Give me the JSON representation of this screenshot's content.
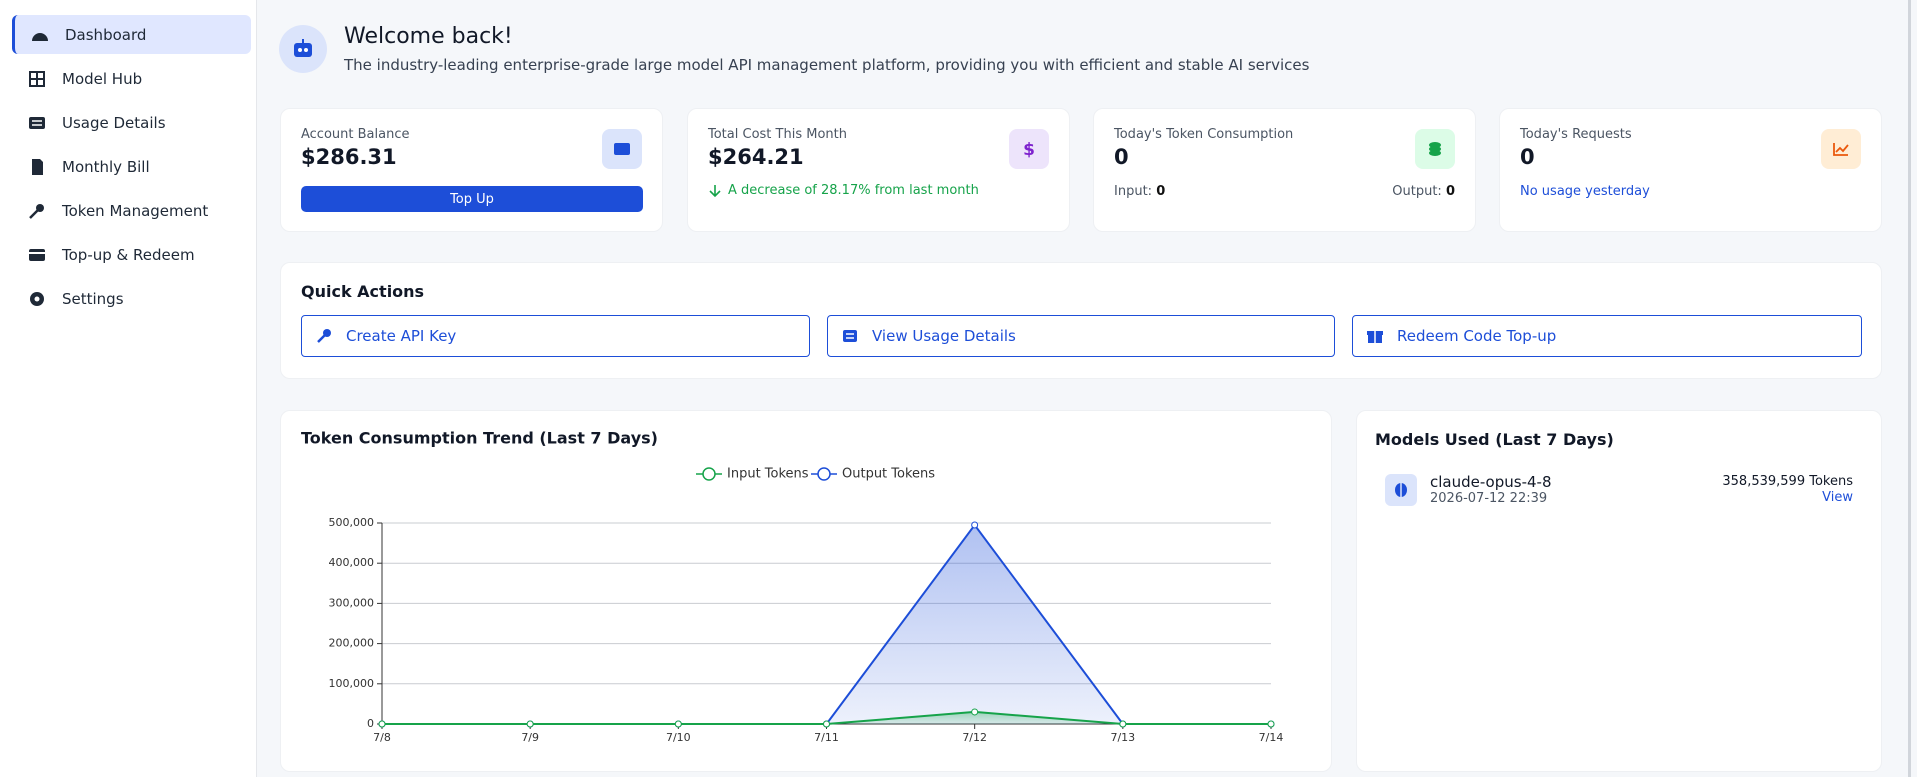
{
  "sidebar": {
    "items": [
      "Dashboard",
      "Model Hub",
      "Usage Details",
      "Monthly Bill",
      "Token Management",
      "Top-up & Redeem",
      "Settings"
    ]
  },
  "header": {
    "title": "Welcome back!",
    "subtitle": "The industry-leading enterprise-grade large model API management platform, providing you with efficient and stable AI services"
  },
  "stats": [
    {
      "label": "Account Balance",
      "value": "$286.31",
      "button": "Top Up"
    },
    {
      "label": "Total Cost This Month",
      "value": "$264.21",
      "note": "A decrease of 28.17% from last month"
    },
    {
      "label": "Today's Token Consumption",
      "value": "0",
      "input_label": "Input:",
      "input": "0",
      "output_label": "Output:",
      "output": "0"
    },
    {
      "label": "Today's Requests",
      "value": "0",
      "note": "No usage yesterday"
    }
  ],
  "quick_actions": {
    "title": "Quick Actions",
    "buttons": [
      "Create API Key",
      "View Usage Details",
      "Redeem Code Top-up"
    ]
  },
  "chart_data": {
    "type": "line",
    "title": "Token Consumption Trend (Last 7 Days)",
    "categories": [
      "7/8",
      "7/9",
      "7/10",
      "7/11",
      "7/12",
      "7/13",
      "7/14"
    ],
    "series": [
      {
        "name": "Input Tokens",
        "color": "#16a34a",
        "values": [
          0,
          0,
          0,
          0,
          30000,
          0,
          0
        ]
      },
      {
        "name": "Output Tokens",
        "color": "#1d4ed8",
        "values": [
          0,
          0,
          0,
          0,
          495000,
          0,
          0
        ]
      }
    ],
    "ylim": [
      0,
      500000
    ],
    "yticks": [
      0,
      {
        "value": 100000,
        "label": "100,000"
      },
      {
        "value": 200000,
        "label": "200,000"
      },
      {
        "value": 300000,
        "label": "300,000"
      },
      {
        "value": 400000,
        "label": "400,000"
      },
      {
        "value": 500000,
        "label": "500,000"
      }
    ],
    "grid": true,
    "legend": "top"
  },
  "models": {
    "title": "Models Used (Last 7 Days)",
    "items": [
      {
        "name": "claude-opus-4-8",
        "time": "2026-07-12 22:39",
        "tokens": "358,539,599 Tokens",
        "action": "View"
      }
    ]
  }
}
